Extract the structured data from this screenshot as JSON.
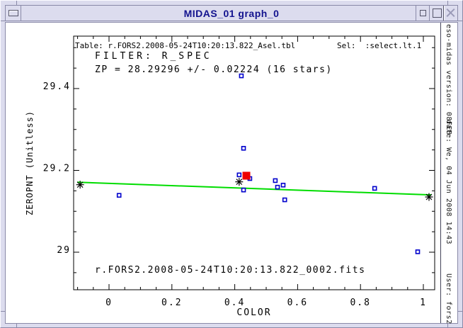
{
  "window": {
    "title": "MIDAS_01 graph_0",
    "buttons": [
      {
        "name": "window-menu",
        "icon": "dash-icon"
      },
      {
        "name": "shade",
        "icon": "small-square-icon"
      },
      {
        "name": "maximize",
        "icon": "square-icon"
      },
      {
        "name": "close",
        "icon": "x-icon"
      }
    ]
  },
  "header": {
    "table_label": "Table: r.FORS2.2008-05-24T10:20:13.822_Asel.tbl",
    "sel_label": "Sel:  :select.lt.1"
  },
  "session_strip": {
    "version": "eso-midas version: 08FEB",
    "date": "date: We, 04 Jun 2008 14:43",
    "user": "User: fors2"
  },
  "colors": {
    "titlebar_bg": "#dcdcee",
    "title_text": "#12128e",
    "fit_line_green": "#00dd00",
    "marker_blue": "#0000cc",
    "marker_red": "#ee0000",
    "plot_fg": "#000000"
  },
  "chart_data": {
    "type": "scatter",
    "xlabel": "COLOR",
    "ylabel": "ZEROPNT (Unitless)",
    "xlim": [
      -0.113,
      1.036
    ],
    "ylim": [
      28.908,
      29.528
    ],
    "x_ticks": [
      0,
      0.2,
      0.4,
      0.6,
      0.8,
      1
    ],
    "x_tick_labels": [
      "0",
      "0.2",
      "0.4",
      "0.6",
      "0.8",
      "1"
    ],
    "y_ticks": [
      29,
      29.2,
      29.4
    ],
    "y_tick_labels": [
      "29",
      "29.2",
      "29.4"
    ],
    "minor_tick_step": 0.05,
    "grid": false,
    "annotations": {
      "filter_label": "FILTER: R_SPEC",
      "zp_label": "ZP = 28.29296 +/- 0.02224 (16 stars)",
      "frame_label": "r.FORS2.2008-05-24T10:20:13.822_0002.fits"
    },
    "series": [
      {
        "name": "stars",
        "marker": "open-square",
        "color": "#0000cc",
        "points": [
          [
            0.421,
            29.431
          ],
          [
            0.428,
            29.254
          ],
          [
            0.414,
            29.189
          ],
          [
            0.448,
            29.18
          ],
          [
            0.428,
            29.152
          ],
          [
            0.529,
            29.175
          ],
          [
            0.536,
            29.159
          ],
          [
            0.554,
            29.164
          ],
          [
            0.559,
            29.128
          ],
          [
            0.845,
            29.156
          ],
          [
            0.982,
            29.001
          ],
          [
            0.032,
            29.139
          ]
        ]
      },
      {
        "name": "selected-star",
        "marker": "filled-square",
        "color": "#ee0000",
        "points": [
          [
            0.437,
            29.187
          ]
        ]
      },
      {
        "name": "fit-nodes",
        "marker": "asterisk",
        "color": "#000000",
        "points": [
          [
            -0.092,
            29.165
          ],
          [
            0.414,
            29.172
          ],
          [
            1.018,
            29.135
          ]
        ]
      }
    ],
    "fit_line": {
      "color": "#00dd00",
      "from": [
        -0.101,
        29.171
      ],
      "to": [
        1.025,
        29.14
      ]
    }
  }
}
